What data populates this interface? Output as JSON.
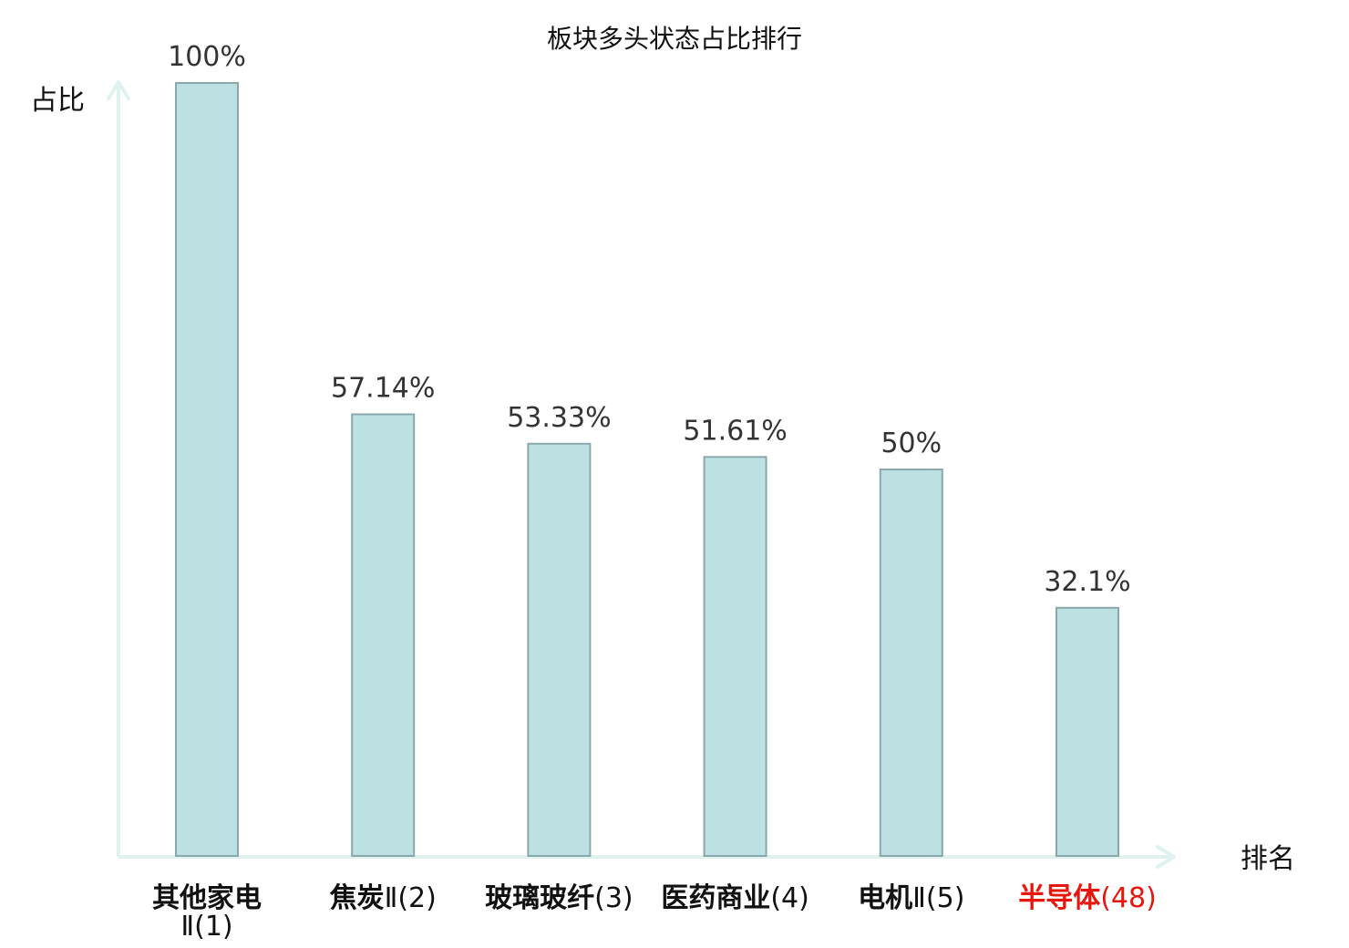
{
  "chart_data": {
    "type": "bar",
    "title": "板块多头状态占比排行",
    "ylabel": "占比",
    "xlabel": "排名",
    "ylim": [
      0,
      100
    ],
    "grid": false,
    "categories": [
      {
        "name": "其他家电",
        "rank": "Ⅱ(1)",
        "highlight": false
      },
      {
        "name": "焦炭",
        "rank": "Ⅱ(2)",
        "highlight": false
      },
      {
        "name": "玻璃玻纤",
        "rank": "(3)",
        "highlight": false
      },
      {
        "name": "医药商业",
        "rank": "(4)",
        "highlight": false
      },
      {
        "name": "电机",
        "rank": "Ⅱ(5)",
        "highlight": false
      },
      {
        "name": "半导体",
        "rank": "(48)",
        "highlight": true
      }
    ],
    "values": [
      100,
      57.14,
      53.33,
      51.61,
      50,
      32.1
    ],
    "value_labels": [
      "100%",
      "57.14%",
      "53.33%",
      "51.61%",
      "50%",
      "32.1%"
    ],
    "colors": {
      "bar_fill": "#bde0e3",
      "bar_stroke": "#8aa8ab",
      "axis": "#dff2ef",
      "highlight_text": "#e8160c",
      "normal_text": "#111111"
    }
  }
}
